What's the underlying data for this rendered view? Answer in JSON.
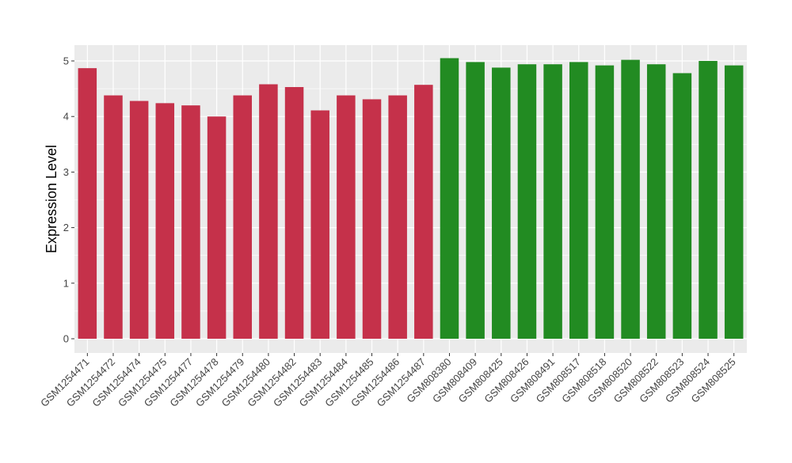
{
  "chart_data": {
    "type": "bar",
    "title": "",
    "xlabel": "",
    "ylabel": "Expression Level",
    "ylim": [
      0,
      5.2
    ],
    "yticks": [
      0,
      1,
      2,
      3,
      4,
      5
    ],
    "ytick_labels": [
      "0",
      "1",
      "2",
      "3",
      "4",
      "5"
    ],
    "grid": true,
    "legend": "none",
    "categories": [
      "GSM1254471",
      "GSM1254472",
      "GSM1254474",
      "GSM1254475",
      "GSM1254477",
      "GSM1254478",
      "GSM1254479",
      "GSM1254480",
      "GSM1254482",
      "GSM1254483",
      "GSM1254484",
      "GSM1254485",
      "GSM1254486",
      "GSM1254487",
      "GSM808380",
      "GSM808409",
      "GSM808425",
      "GSM808426",
      "GSM808491",
      "GSM808517",
      "GSM808518",
      "GSM808520",
      "GSM808522",
      "GSM808523",
      "GSM808524",
      "GSM808525"
    ],
    "values": [
      4.87,
      4.38,
      4.28,
      4.24,
      4.2,
      4.0,
      4.38,
      4.58,
      4.53,
      4.11,
      4.38,
      4.31,
      4.38,
      4.57,
      5.05,
      4.98,
      4.88,
      4.94,
      4.94,
      4.98,
      4.92,
      5.02,
      4.94,
      4.78,
      5.0,
      4.92
    ],
    "bar_colors": [
      "#C5314A",
      "#C5314A",
      "#C5314A",
      "#C5314A",
      "#C5314A",
      "#C5314A",
      "#C5314A",
      "#C5314A",
      "#C5314A",
      "#C5314A",
      "#C5314A",
      "#C5314A",
      "#C5314A",
      "#C5314A",
      "#228B22",
      "#228B22",
      "#228B22",
      "#228B22",
      "#228B22",
      "#228B22",
      "#228B22",
      "#228B22",
      "#228B22",
      "#228B22",
      "#228B22",
      "#228B22"
    ],
    "panel_background": "#EBEBEB",
    "grid_color": "#FFFFFF"
  }
}
